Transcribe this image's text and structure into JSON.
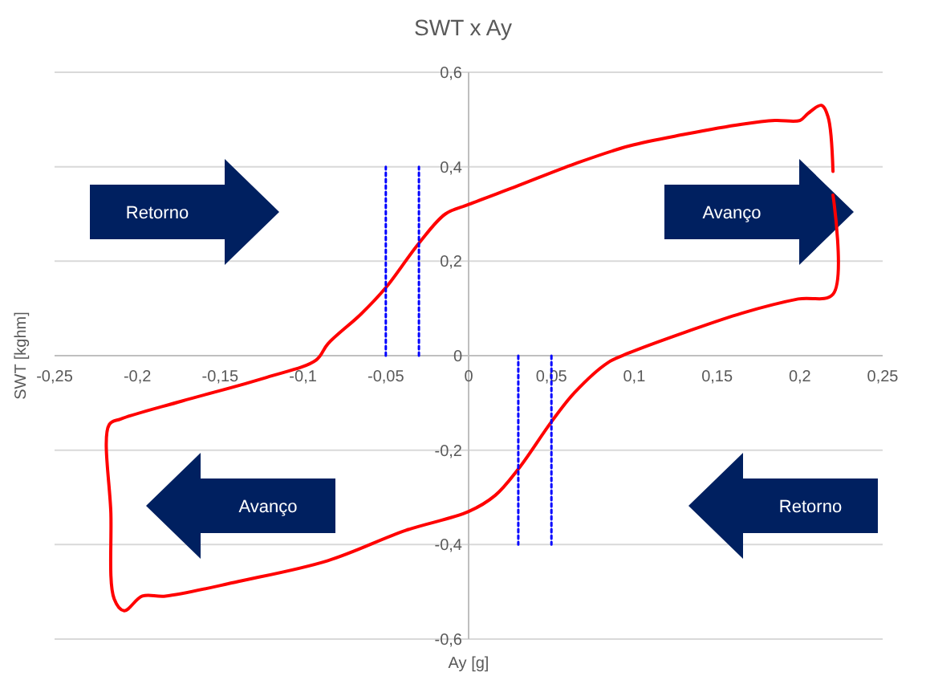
{
  "chart_data": {
    "type": "line",
    "title": "SWT x Ay",
    "xlabel": "Ay [g]",
    "ylabel": "SWT [kghm]",
    "xlim": [
      -0.25,
      0.25
    ],
    "ylim": [
      -0.6,
      0.6
    ],
    "xticks": [
      {
        "value": -0.25,
        "label": "-0,25"
      },
      {
        "value": -0.2,
        "label": "-0,2"
      },
      {
        "value": -0.15,
        "label": "-0,15"
      },
      {
        "value": -0.1,
        "label": "-0,1"
      },
      {
        "value": -0.05,
        "label": "-0,05"
      },
      0,
      {
        "value": 0.05,
        "label": "0,05"
      },
      {
        "value": 0.1,
        "label": "0,1"
      },
      {
        "value": 0.15,
        "label": "0,15"
      },
      {
        "value": 0.2,
        "label": "0,2"
      },
      {
        "value": 0.25,
        "label": "0,25"
      }
    ],
    "yticks": [
      {
        "value": -0.6,
        "label": "-0,6"
      },
      {
        "value": -0.4,
        "label": "-0,4"
      },
      {
        "value": -0.2,
        "label": "-0,2"
      },
      0,
      {
        "value": 0.2,
        "label": "0,2"
      },
      {
        "value": 0.4,
        "label": "0,4"
      },
      {
        "value": 0.6,
        "label": "0,6"
      }
    ],
    "grid": "y",
    "marker": "none",
    "annotations": [
      "Retorno",
      "Avanço",
      "Avanço",
      "Retorno"
    ],
    "series": [
      {
        "color": "#ff0000",
        "line_style": "solid",
        "x": [
          0.22,
          0.22,
          0.199,
          0.165,
          0.131,
          0.097,
          0.084,
          0.064,
          0.05,
          0.03,
          0.016,
          0,
          -0.038,
          -0.085,
          -0.139,
          -0.183,
          -0.197,
          -0.208,
          -0.214,
          -0.216,
          -0.217,
          -0.21,
          -0.173,
          -0.122,
          -0.092,
          -0.085,
          -0.065,
          -0.05,
          -0.03,
          -0.014,
          0,
          0.03,
          0.064,
          0.097,
          0.131,
          0.165,
          0.185,
          0.2,
          0.205,
          0.213,
          0.217,
          0.22
        ],
        "values": [
          0.34,
          0.13,
          0.12,
          0.09,
          0.05,
          0.006,
          -0.015,
          -0.078,
          -0.14,
          -0.24,
          -0.296,
          -0.33,
          -0.37,
          -0.434,
          -0.478,
          -0.509,
          -0.509,
          -0.54,
          -0.515,
          -0.334,
          -0.146,
          -0.134,
          -0.096,
          -0.046,
          -0.009,
          0.025,
          0.088,
          0.144,
          0.238,
          0.3,
          0.32,
          0.36,
          0.406,
          0.444,
          0.469,
          0.49,
          0.498,
          0.498,
          0.513,
          0.53,
          0.506,
          0.39
        ]
      },
      {
        "color": "#0000ff",
        "line_style": "dotted",
        "x": [
          -0.05,
          -0.05
        ],
        "values": [
          0,
          0.4
        ]
      },
      {
        "color": "#0000ff",
        "line_style": "dotted",
        "x": [
          -0.03,
          -0.03
        ],
        "values": [
          0,
          0.4
        ]
      },
      {
        "color": "#0000ff",
        "line_style": "dotted",
        "x": [
          0.03,
          0.03
        ],
        "values": [
          0,
          -0.4
        ]
      },
      {
        "color": "#0000ff",
        "line_style": "dotted",
        "x": [
          0.05,
          0.05
        ],
        "values": [
          0,
          -0.4
        ]
      }
    ]
  }
}
